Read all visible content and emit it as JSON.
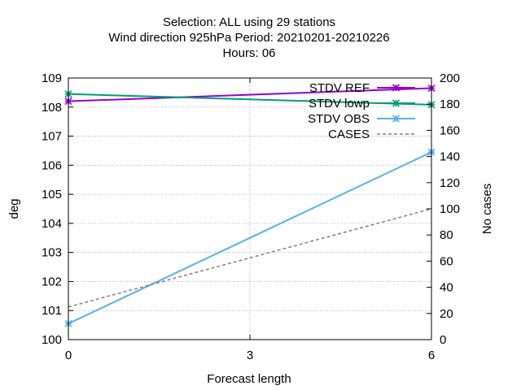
{
  "chart_data": {
    "type": "line",
    "title_lines": [
      "Selection: ALL using    29 stations",
      "Wind direction 925hPa   Period: 20210201-20210226",
      "Hours:  06"
    ],
    "xlabel": "Forecast length",
    "ylabel": "deg",
    "y2label": "No cases",
    "x": [
      0,
      6
    ],
    "xlim": [
      0,
      6
    ],
    "ylim": [
      100,
      109
    ],
    "y2lim": [
      0,
      200
    ],
    "xticks": [
      0,
      3,
      6
    ],
    "yticks": [
      100,
      101,
      102,
      103,
      104,
      105,
      106,
      107,
      108,
      109
    ],
    "y2ticks": [
      0,
      20,
      40,
      60,
      80,
      100,
      120,
      140,
      160,
      180,
      200
    ],
    "grid": true,
    "legend_position": "top-right",
    "series": [
      {
        "name": "STDV REF",
        "axis": "y",
        "values": [
          108.2,
          108.65
        ],
        "color": "#9400d3",
        "style": "solid",
        "marker": "x-cross"
      },
      {
        "name": "STDV lowp",
        "axis": "y",
        "values": [
          108.45,
          108.08
        ],
        "color": "#009e73",
        "style": "solid",
        "marker": "x-cross"
      },
      {
        "name": "STDV OBS",
        "axis": "y",
        "values": [
          100.55,
          106.45
        ],
        "color": "#56b4e9",
        "style": "solid",
        "marker": "x-cross"
      },
      {
        "name": "CASES",
        "axis": "y2",
        "values": [
          25,
          100
        ],
        "color": "#808080",
        "style": "dashed",
        "marker": "none"
      }
    ]
  }
}
